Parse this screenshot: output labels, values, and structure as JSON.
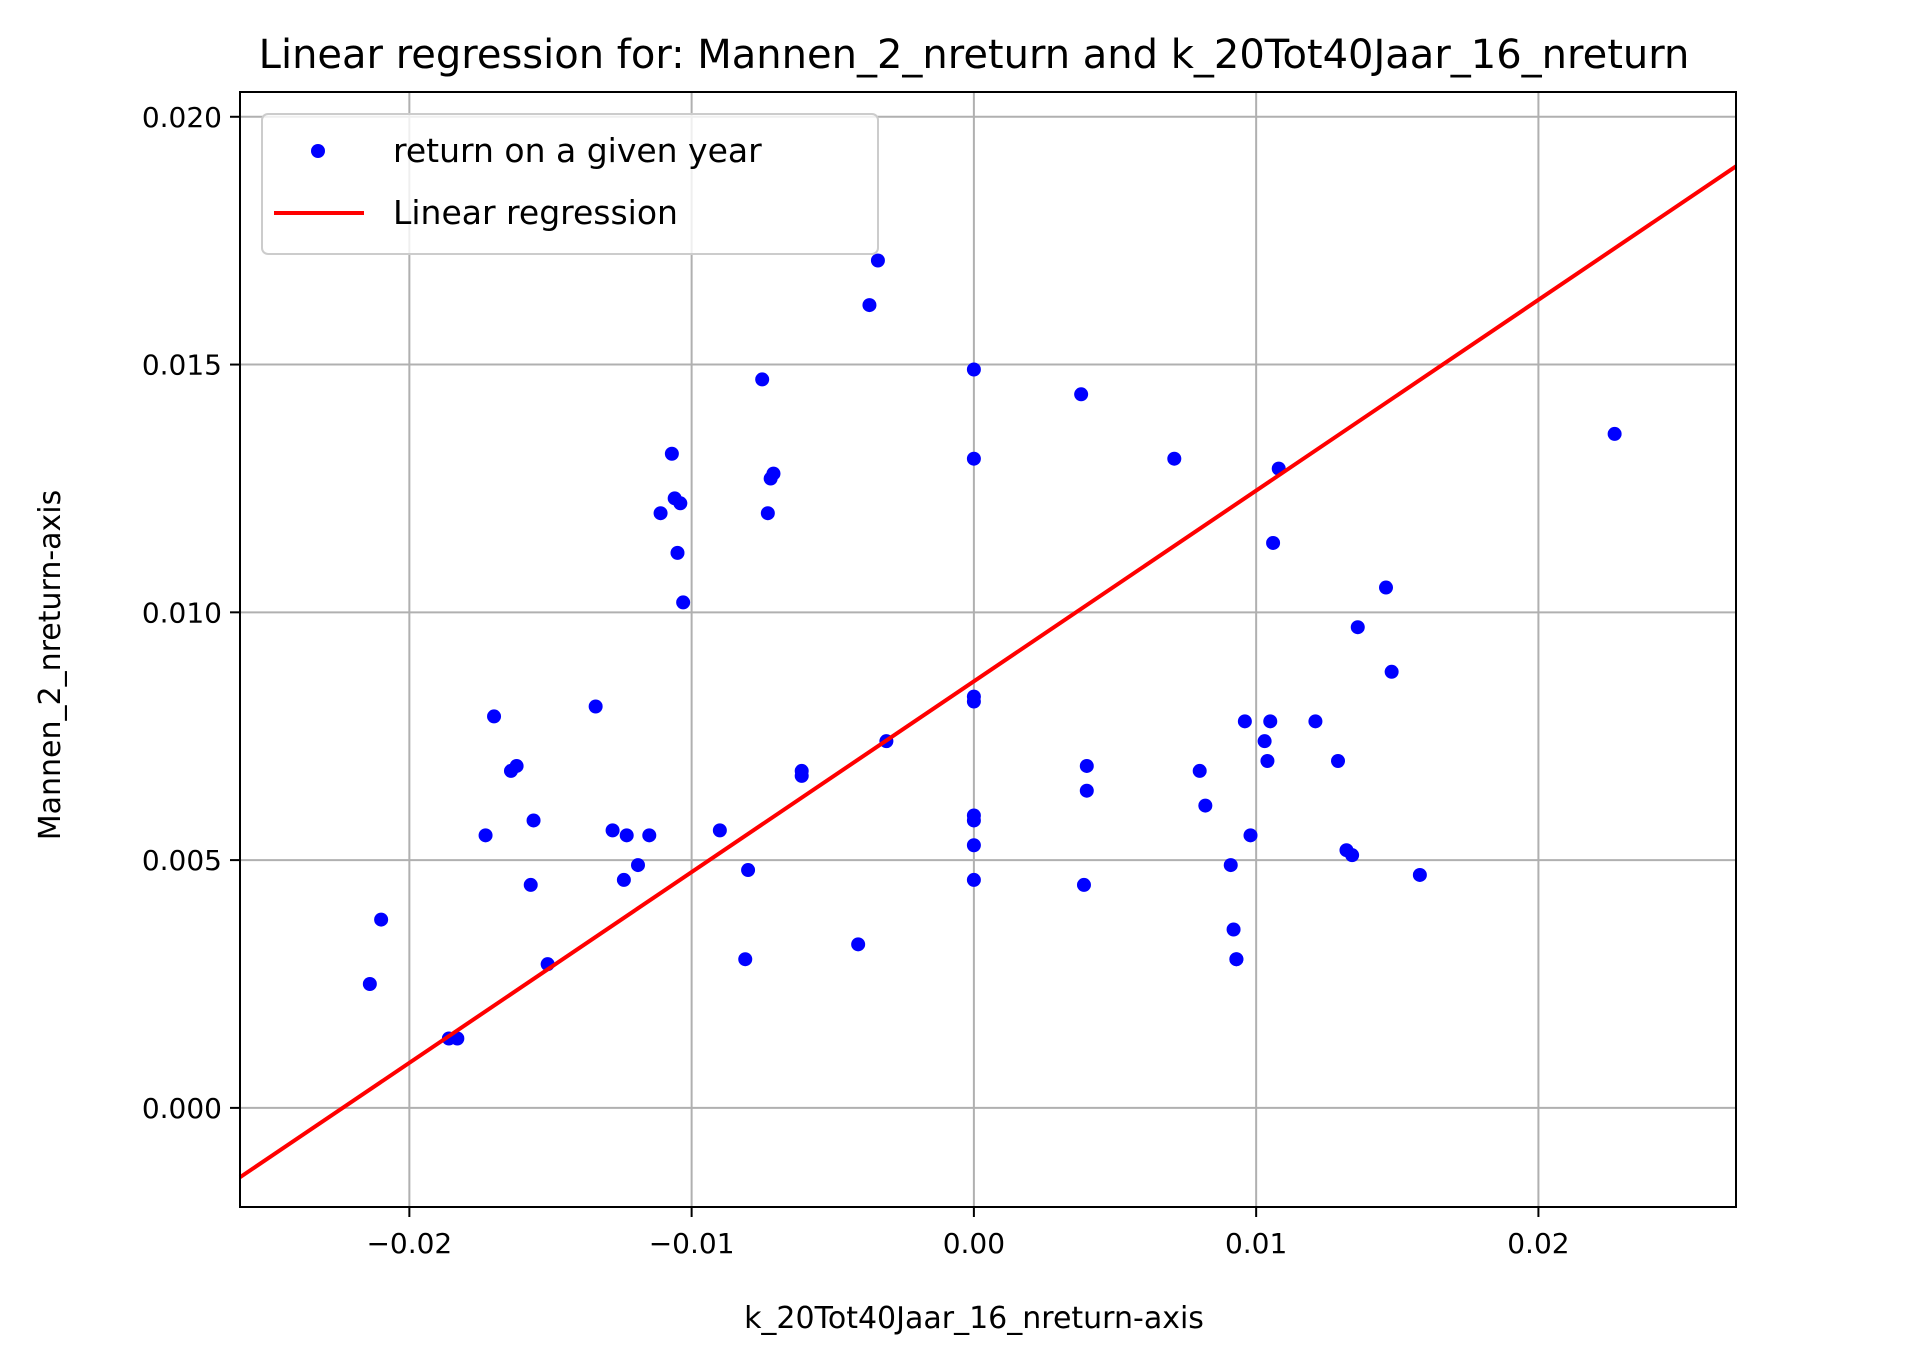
{
  "chart_data": {
    "type": "scatter",
    "title": "Linear regression for: Mannen_2_nreturn and k_20Tot40Jaar_16_nreturn",
    "xlabel": "k_20Tot40Jaar_16_nreturn-axis",
    "ylabel": "Mannen_2_nreturn-axis",
    "xlim": [
      -0.026,
      0.027
    ],
    "ylim": [
      -0.002,
      0.0205
    ],
    "xticks": [
      -0.02,
      -0.01,
      0.0,
      0.01,
      0.02
    ],
    "xtick_labels": [
      "−0.02",
      "−0.01",
      "0.00",
      "0.01",
      "0.02"
    ],
    "yticks": [
      0.0,
      0.005,
      0.01,
      0.015,
      0.02
    ],
    "ytick_labels": [
      "0.000",
      "0.005",
      "0.010",
      "0.015",
      "0.020"
    ],
    "grid": true,
    "legend_position": "top-left",
    "colors": {
      "points": "#0000ff",
      "line": "#ff0000",
      "grid": "#b0b0b0"
    },
    "series": [
      {
        "name": "return on a given year",
        "type": "scatter",
        "points": [
          [
            -0.0214,
            0.0025
          ],
          [
            -0.021,
            0.0038
          ],
          [
            -0.0186,
            0.0014
          ],
          [
            -0.0183,
            0.0014
          ],
          [
            -0.0173,
            0.0055
          ],
          [
            -0.017,
            0.0079
          ],
          [
            -0.0164,
            0.0068
          ],
          [
            -0.0162,
            0.0069
          ],
          [
            -0.0157,
            0.0045
          ],
          [
            -0.0156,
            0.0058
          ],
          [
            -0.0151,
            0.0029
          ],
          [
            -0.0134,
            0.0081
          ],
          [
            -0.0128,
            0.0056
          ],
          [
            -0.0124,
            0.0046
          ],
          [
            -0.0123,
            0.0055
          ],
          [
            -0.0119,
            0.0049
          ],
          [
            -0.0115,
            0.0055
          ],
          [
            -0.0111,
            0.012
          ],
          [
            -0.0107,
            0.0132
          ],
          [
            -0.0106,
            0.0123
          ],
          [
            -0.0105,
            0.0112
          ],
          [
            -0.0104,
            0.0122
          ],
          [
            -0.0103,
            0.0102
          ],
          [
            -0.009,
            0.0056
          ],
          [
            -0.0081,
            0.003
          ],
          [
            -0.008,
            0.0048
          ],
          [
            -0.0075,
            0.0147
          ],
          [
            -0.0073,
            0.012
          ],
          [
            -0.0072,
            0.0127
          ],
          [
            -0.0071,
            0.0128
          ],
          [
            -0.0061,
            0.0067
          ],
          [
            -0.0061,
            0.0068
          ],
          [
            -0.0041,
            0.0033
          ],
          [
            -0.0037,
            0.0162
          ],
          [
            -0.0034,
            0.0171
          ],
          [
            -0.0031,
            0.0074
          ],
          [
            0.0,
            0.0149
          ],
          [
            0.0,
            0.0131
          ],
          [
            0.0,
            0.0083
          ],
          [
            0.0,
            0.0082
          ],
          [
            0.0,
            0.0059
          ],
          [
            0.0,
            0.0058
          ],
          [
            0.0,
            0.0053
          ],
          [
            0.0,
            0.0046
          ],
          [
            0.0038,
            0.0144
          ],
          [
            0.0039,
            0.0045
          ],
          [
            0.004,
            0.0064
          ],
          [
            0.004,
            0.0069
          ],
          [
            0.0071,
            0.0131
          ],
          [
            0.008,
            0.0068
          ],
          [
            0.0082,
            0.0061
          ],
          [
            0.0091,
            0.0049
          ],
          [
            0.0092,
            0.0036
          ],
          [
            0.0093,
            0.003
          ],
          [
            0.0093,
            0.003
          ],
          [
            0.0096,
            0.0078
          ],
          [
            0.0098,
            0.0055
          ],
          [
            0.0103,
            0.0074
          ],
          [
            0.0104,
            0.007
          ],
          [
            0.0105,
            0.0078
          ],
          [
            0.0106,
            0.0114
          ],
          [
            0.0108,
            0.0129
          ],
          [
            0.0121,
            0.0078
          ],
          [
            0.0129,
            0.007
          ],
          [
            0.0132,
            0.0052
          ],
          [
            0.0134,
            0.0051
          ],
          [
            0.0136,
            0.0097
          ],
          [
            0.0146,
            0.0105
          ],
          [
            0.0148,
            0.0088
          ],
          [
            0.0158,
            0.0047
          ],
          [
            0.0227,
            0.0136
          ]
        ]
      },
      {
        "name": "Linear regression",
        "type": "line",
        "points": [
          [
            -0.026,
            -0.0014
          ],
          [
            0.027,
            0.019
          ]
        ]
      }
    ]
  }
}
